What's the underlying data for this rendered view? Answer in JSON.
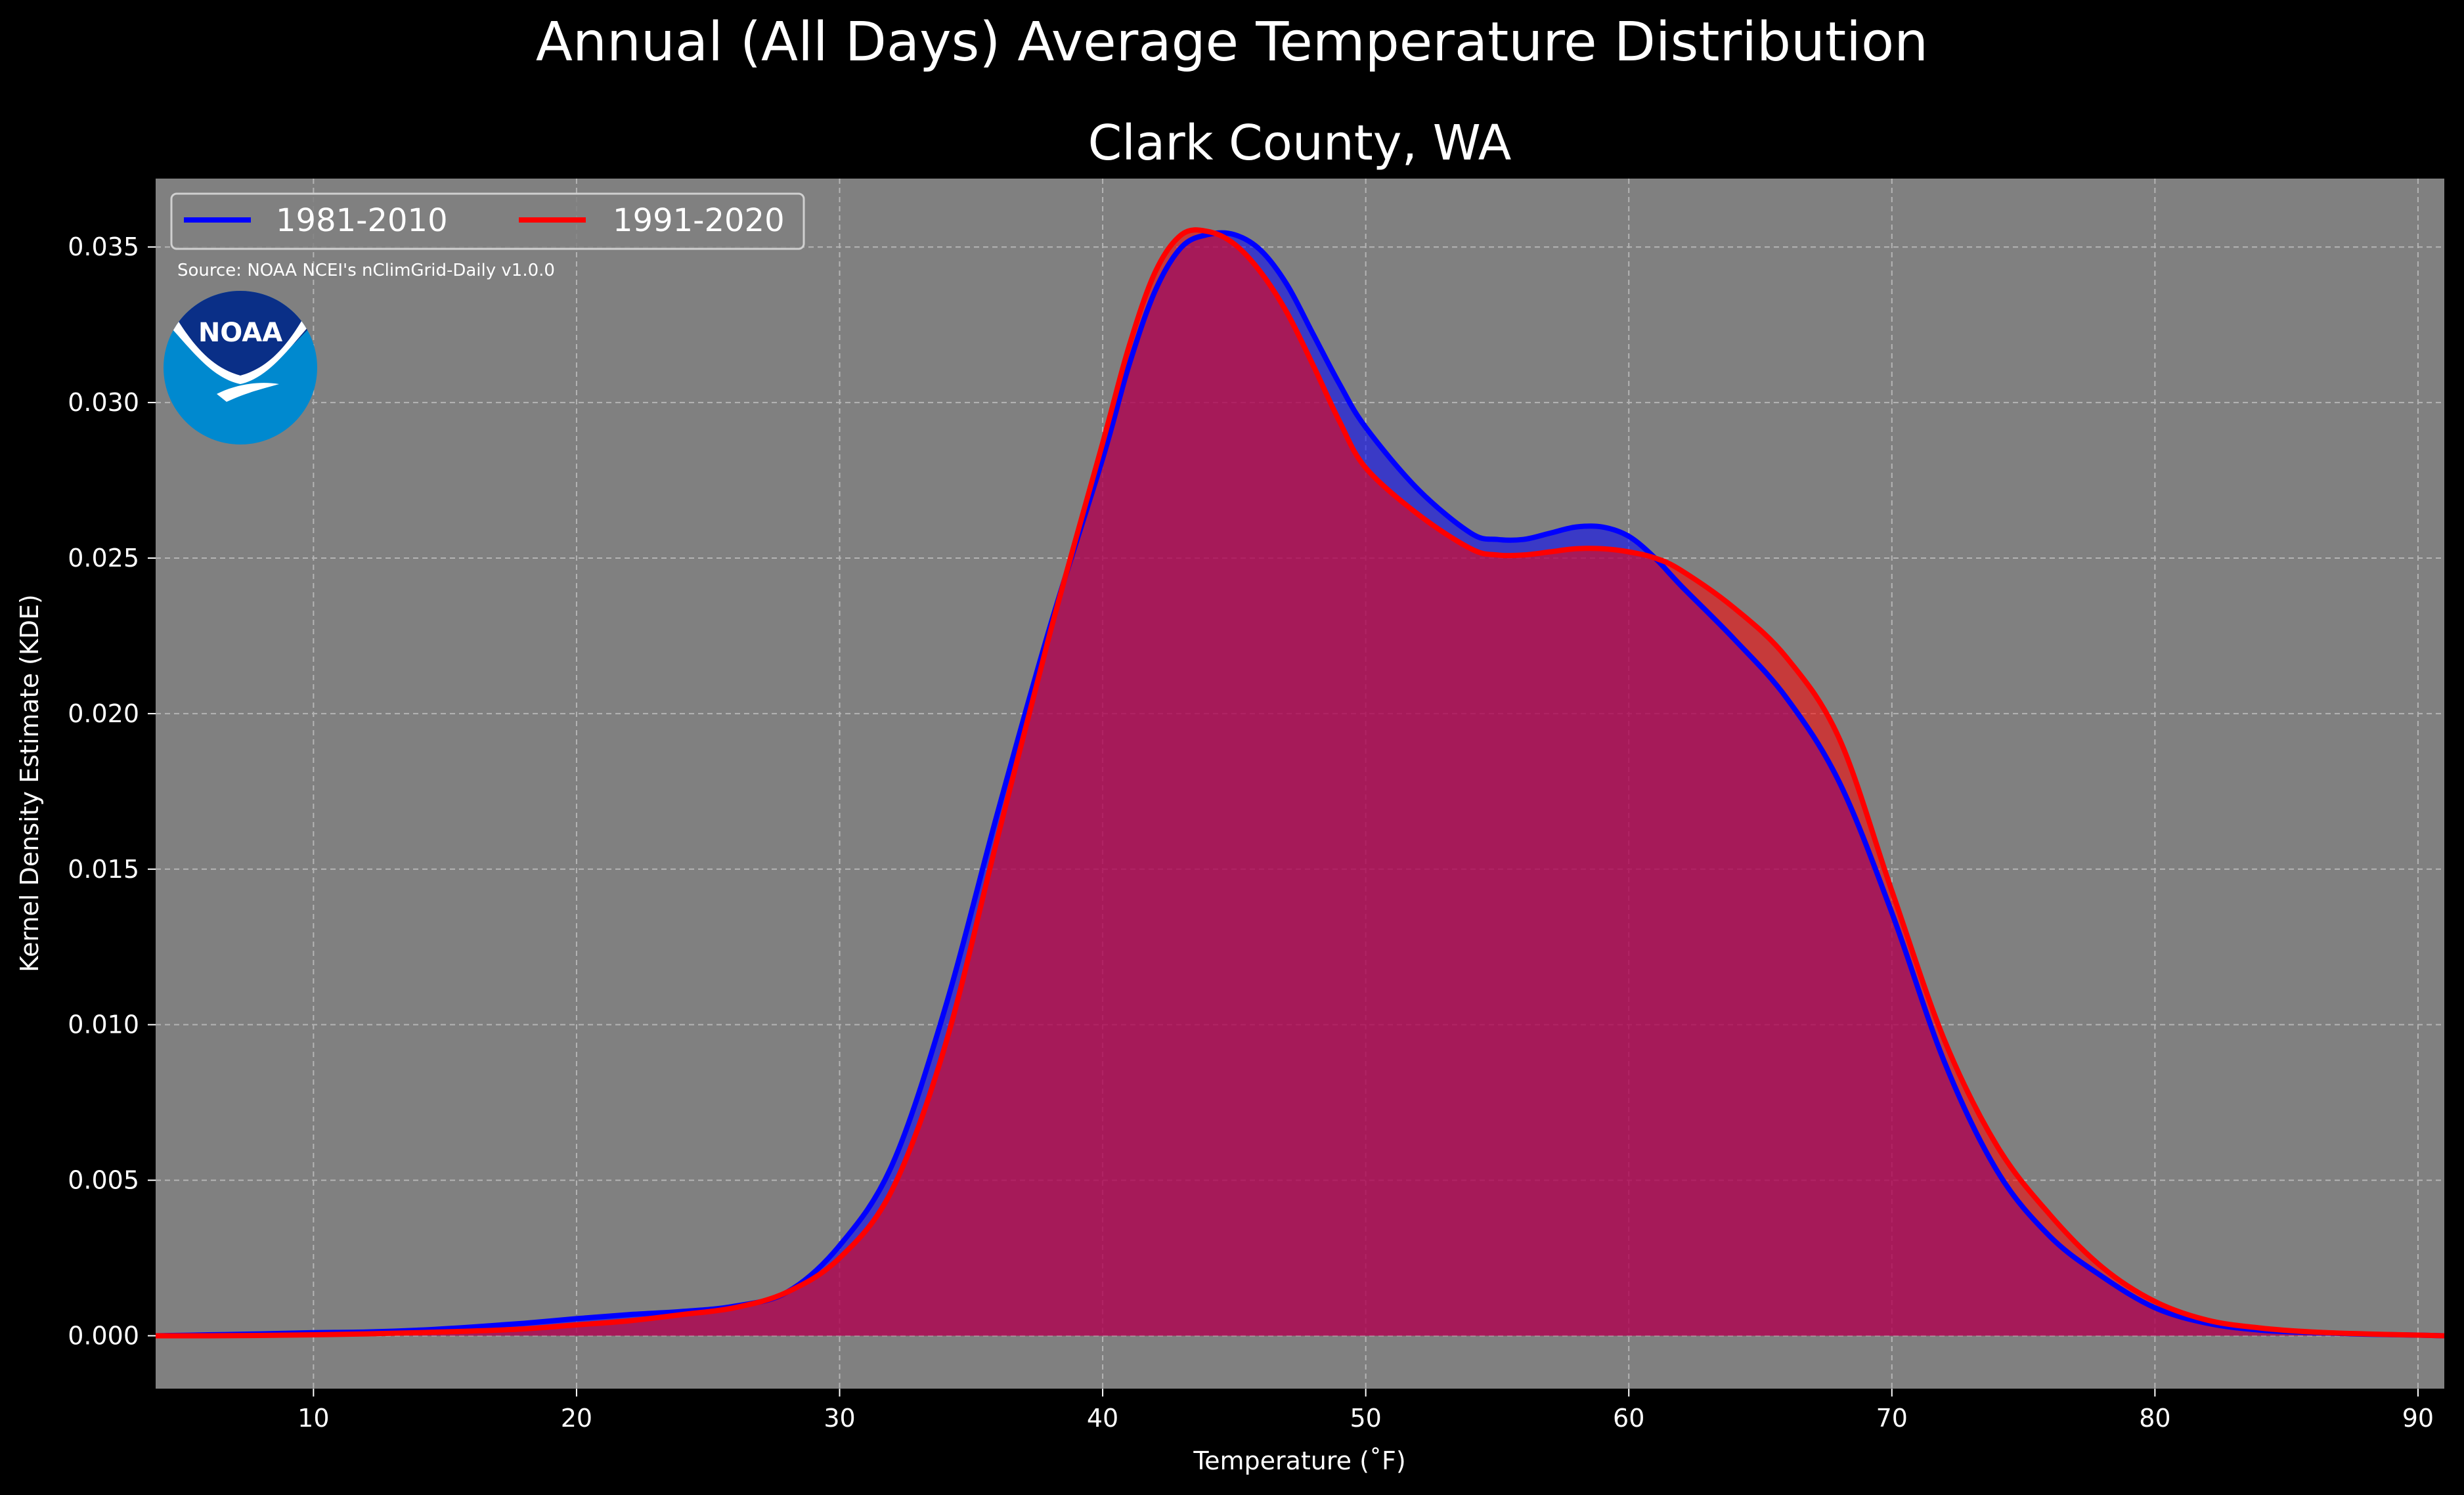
{
  "chart_data": {
    "type": "area",
    "title": "Annual (All Days) Average Temperature Distribution",
    "subtitle": "Clark County, WA",
    "xlabel": "Temperature ($^\\circ$F)",
    "xlabel_display": "Temperature (˚F)",
    "ylabel": "Kernel Density Estimate (KDE)",
    "xlim": [
      4,
      91
    ],
    "ylim": [
      -0.0017,
      0.0372
    ],
    "x_ticks": [
      10,
      20,
      30,
      40,
      50,
      60,
      70,
      80,
      90
    ],
    "y_ticks": [
      0.0,
      0.005,
      0.01,
      0.015,
      0.02,
      0.025,
      0.03,
      0.035
    ],
    "x_tick_labels": [
      "10",
      "20",
      "30",
      "40",
      "50",
      "60",
      "70",
      "80",
      "90"
    ],
    "y_tick_labels": [
      "0.000",
      "0.005",
      "0.010",
      "0.015",
      "0.020",
      "0.025",
      "0.030",
      "0.035"
    ],
    "grid": true,
    "legend_placement": "top-left",
    "background": "#808080",
    "annotation": "Source: NOAA NCEI's nClimGrid-Daily v1.0.0",
    "series": [
      {
        "name": "1981-2010",
        "color": "#0000ff",
        "x": [
          4,
          6,
          8,
          10,
          12,
          14,
          16,
          18,
          20,
          22,
          24,
          26,
          28,
          30,
          32,
          34,
          36,
          38,
          40,
          41,
          42,
          43,
          44,
          45,
          46,
          47,
          48,
          49,
          50,
          52,
          54,
          55,
          56,
          57,
          58,
          59,
          60,
          61,
          62,
          64,
          66,
          68,
          70,
          72,
          74,
          76,
          78,
          80,
          82,
          84,
          86,
          88,
          90,
          91
        ],
        "y": [
          0.0,
          3e-05,
          6e-05,
          0.0001,
          0.00012,
          0.00018,
          0.00028,
          0.0004,
          0.00055,
          0.00068,
          0.00078,
          0.00095,
          0.0014,
          0.0029,
          0.0055,
          0.0105,
          0.0168,
          0.0228,
          0.0282,
          0.0312,
          0.0336,
          0.035,
          0.0354,
          0.0354,
          0.0349,
          0.0338,
          0.0322,
          0.0306,
          0.0292,
          0.0272,
          0.0258,
          0.0256,
          0.0256,
          0.0258,
          0.026,
          0.026,
          0.0257,
          0.025,
          0.0241,
          0.0224,
          0.0205,
          0.0178,
          0.0136,
          0.0088,
          0.0053,
          0.0032,
          0.0019,
          0.0009,
          0.0004,
          0.00018,
          0.0001,
          5e-05,
          2e-05,
          0.0
        ]
      },
      {
        "name": "1991-2020",
        "color": "#ff0000",
        "x": [
          4,
          6,
          8,
          10,
          12,
          14,
          16,
          18,
          20,
          22,
          24,
          26,
          28,
          30,
          32,
          34,
          36,
          38,
          40,
          41,
          42,
          43,
          44,
          45,
          46,
          47,
          48,
          49,
          50,
          52,
          54,
          55,
          56,
          57,
          58,
          59,
          60,
          61,
          62,
          64,
          66,
          68,
          70,
          72,
          74,
          76,
          78,
          80,
          82,
          84,
          86,
          88,
          90,
          91
        ],
        "y": [
          0.0,
          0.0,
          1e-05,
          3e-05,
          6e-05,
          0.0001,
          0.00015,
          0.00022,
          0.00035,
          0.00048,
          0.00068,
          0.0009,
          0.0014,
          0.0025,
          0.0047,
          0.0093,
          0.016,
          0.0226,
          0.0287,
          0.0318,
          0.0342,
          0.0354,
          0.0355,
          0.0351,
          0.0342,
          0.0329,
          0.0312,
          0.0294,
          0.0279,
          0.0264,
          0.0253,
          0.0251,
          0.0251,
          0.0252,
          0.0253,
          0.0253,
          0.0252,
          0.025,
          0.0246,
          0.0234,
          0.0218,
          0.0192,
          0.0143,
          0.0095,
          0.0061,
          0.0039,
          0.0022,
          0.0011,
          0.0005,
          0.00025,
          0.00012,
          6e-05,
          2e-05,
          0.0
        ]
      }
    ]
  },
  "logo": {
    "text": "NOAA",
    "circle_color": "#0089cf",
    "top_color": "#0a2f87",
    "wave_color": "#ffffff"
  }
}
